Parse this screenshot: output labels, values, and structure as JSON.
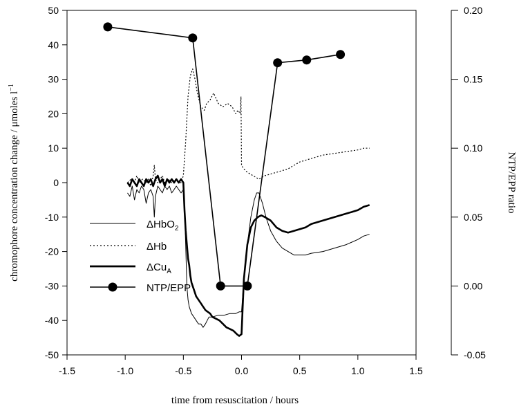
{
  "chart_data": {
    "type": "line",
    "xlabel": "time from resuscitation / hours",
    "ylabel": "chromophore concentration change / μmoles l",
    "ylabel_sup": "−1",
    "y2label": "NTP/EPP ratio",
    "xlim": [
      -1.5,
      1.5
    ],
    "ylim": [
      -50,
      50
    ],
    "y2lim": [
      -0.05,
      0.2
    ],
    "x_ticks": [
      "-1.5",
      "-1.0",
      "-0.5",
      "0.0",
      "0.5",
      "1.0",
      "1.5"
    ],
    "y_ticks": [
      "-50",
      "-40",
      "-30",
      "-20",
      "-10",
      "0",
      "10",
      "20",
      "30",
      "40",
      "50"
    ],
    "y2_ticks": [
      "-0.05",
      "0.00",
      "0.05",
      "0.10",
      "0.15",
      "0.20"
    ],
    "legend_position": "lower-left",
    "series": [
      {
        "name": "ΔHbO",
        "name_sub": "2",
        "style": "thin",
        "axis": "left",
        "x": [
          -0.98,
          -0.96,
          -0.94,
          -0.92,
          -0.9,
          -0.88,
          -0.86,
          -0.84,
          -0.82,
          -0.8,
          -0.78,
          -0.76,
          -0.75,
          -0.74,
          -0.72,
          -0.7,
          -0.68,
          -0.66,
          -0.64,
          -0.62,
          -0.6,
          -0.58,
          -0.56,
          -0.54,
          -0.52,
          -0.5,
          -0.49,
          -0.48,
          -0.47,
          -0.46,
          -0.45,
          -0.43,
          -0.41,
          -0.39,
          -0.37,
          -0.35,
          -0.33,
          -0.31,
          -0.28,
          -0.25,
          -0.2,
          -0.15,
          -0.1,
          -0.05,
          -0.02,
          0.0,
          0.02,
          0.05,
          0.08,
          0.11,
          0.13,
          0.15,
          0.18,
          0.21,
          0.25,
          0.3,
          0.35,
          0.4,
          0.45,
          0.5,
          0.55,
          0.6,
          0.7,
          0.8,
          0.9,
          1.0,
          1.05,
          1.1
        ],
        "y": [
          -3,
          -4,
          -1,
          -5,
          -2,
          -3,
          -1,
          -2,
          -6,
          -3,
          -2,
          -4,
          -10,
          -4,
          -1,
          -2,
          -3,
          -1,
          -2,
          -1,
          -3,
          -2,
          -1,
          -2,
          -3,
          -2,
          -8,
          -18,
          -30,
          -34,
          -36,
          -38,
          -39,
          -40,
          -41,
          -41,
          -42,
          -41,
          -39,
          -39,
          -38.5,
          -38.5,
          -38,
          -38,
          -37.5,
          -37.5,
          -28,
          -18,
          -10,
          -5,
          -3,
          -3,
          -6,
          -10,
          -14,
          -17,
          -19,
          -20,
          -21,
          -21,
          -21,
          -20.5,
          -20,
          -19,
          -18,
          -16.5,
          -15.5,
          -15
        ]
      },
      {
        "name": "ΔHb",
        "name_sub": "",
        "style": "dotted",
        "axis": "left",
        "x": [
          -0.98,
          -0.95,
          -0.92,
          -0.9,
          -0.88,
          -0.85,
          -0.82,
          -0.8,
          -0.78,
          -0.76,
          -0.75,
          -0.74,
          -0.72,
          -0.7,
          -0.68,
          -0.66,
          -0.63,
          -0.6,
          -0.57,
          -0.54,
          -0.52,
          -0.5,
          -0.48,
          -0.46,
          -0.44,
          -0.42,
          -0.4,
          -0.38,
          -0.35,
          -0.32,
          -0.3,
          -0.27,
          -0.24,
          -0.2,
          -0.16,
          -0.12,
          -0.08,
          -0.05,
          -0.03,
          -0.01,
          -0.005,
          0.0,
          0.02,
          0.05,
          0.1,
          0.15,
          0.2,
          0.3,
          0.4,
          0.5,
          0.6,
          0.7,
          0.8,
          0.9,
          1.0,
          1.05,
          1.1
        ],
        "y": [
          0,
          1,
          0,
          2,
          0,
          1,
          0,
          1,
          -1,
          2,
          5,
          1,
          0,
          1,
          2,
          0,
          1,
          0,
          1,
          0,
          0,
          2,
          12,
          25,
          31,
          33,
          30,
          26,
          22,
          21,
          23,
          24,
          26,
          23,
          22,
          23,
          22,
          20,
          21,
          20,
          25,
          5,
          4,
          3,
          2,
          1,
          2,
          3,
          4,
          6,
          7,
          8,
          8.5,
          9,
          9.5,
          10,
          10
        ]
      },
      {
        "name": "ΔCu",
        "name_sub": "A",
        "style": "thick",
        "axis": "left",
        "x": [
          -0.98,
          -0.96,
          -0.94,
          -0.92,
          -0.9,
          -0.88,
          -0.86,
          -0.84,
          -0.82,
          -0.8,
          -0.78,
          -0.76,
          -0.74,
          -0.72,
          -0.7,
          -0.68,
          -0.66,
          -0.64,
          -0.62,
          -0.6,
          -0.58,
          -0.56,
          -0.54,
          -0.52,
          -0.5,
          -0.49,
          -0.48,
          -0.47,
          -0.46,
          -0.45,
          -0.44,
          -0.43,
          -0.41,
          -0.39,
          -0.37,
          -0.35,
          -0.33,
          -0.31,
          -0.29,
          -0.27,
          -0.25,
          -0.22,
          -0.19,
          -0.16,
          -0.13,
          -0.1,
          -0.07,
          -0.04,
          -0.02,
          0.0,
          0.02,
          0.05,
          0.08,
          0.11,
          0.14,
          0.17,
          0.2,
          0.25,
          0.3,
          0.35,
          0.4,
          0.45,
          0.5,
          0.55,
          0.6,
          0.7,
          0.8,
          0.9,
          1.0,
          1.05,
          1.1
        ],
        "y": [
          0,
          -1,
          1,
          0,
          -1,
          1,
          0,
          -1,
          1,
          0,
          1,
          -1,
          1,
          2,
          0,
          1,
          -1,
          1,
          0,
          1,
          0,
          1,
          0,
          1,
          0,
          -8,
          -14,
          -18,
          -22,
          -24,
          -27,
          -29,
          -31,
          -33,
          -34,
          -35,
          -36,
          -37,
          -37.5,
          -38,
          -39,
          -39.5,
          -40,
          -41,
          -42,
          -42.5,
          -43,
          -44,
          -44.5,
          -44,
          -28,
          -18,
          -13,
          -11,
          -10,
          -9.5,
          -10,
          -11,
          -13,
          -14,
          -14.5,
          -14,
          -13.5,
          -13,
          -12,
          -11,
          -10,
          -9,
          -8,
          -7,
          -6.5
        ]
      }
    ],
    "points_series": {
      "name": "NTP/EPP",
      "axis": "right",
      "x": [
        -1.15,
        -0.42,
        -0.18,
        0.05,
        0.31,
        0.56,
        0.85
      ],
      "y": [
        0.188,
        0.18,
        0.0,
        0.0,
        0.162,
        0.164,
        0.168
      ]
    }
  }
}
